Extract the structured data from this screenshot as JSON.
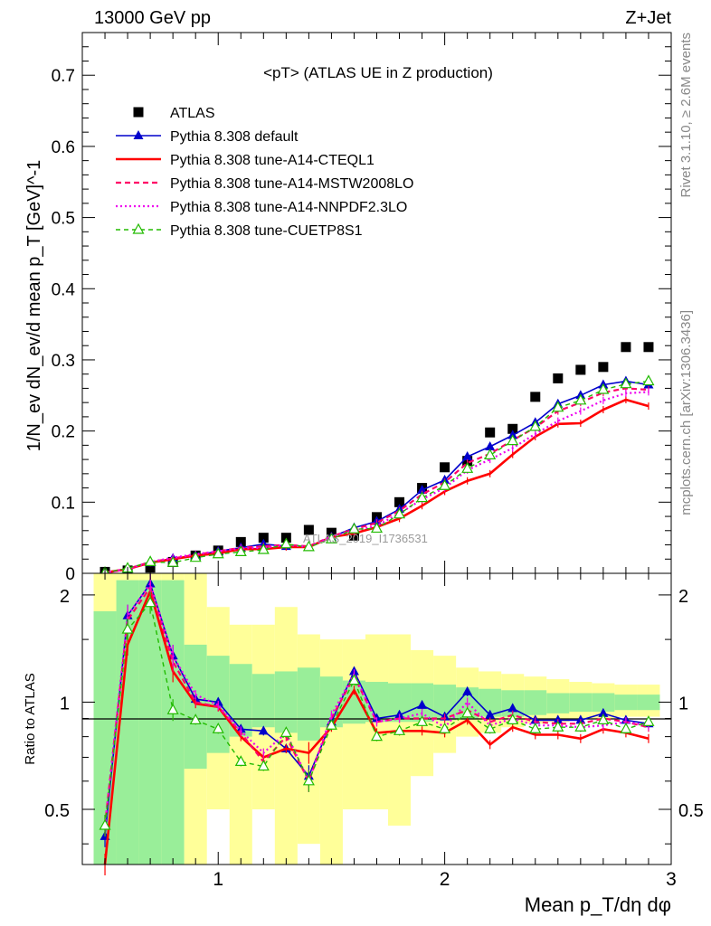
{
  "header": {
    "left": "13000 GeV pp",
    "right": "Z+Jet"
  },
  "side": {
    "rivet": "Rivet 3.1.10, ≥ 2.6M events",
    "mcplots": "mcplots.cern.ch [arXiv:1306.3436]"
  },
  "watermark": "ATLAS_2019_I1736531",
  "colors": {
    "atlas": "#000000",
    "default": "#0000cc",
    "cteql1": "#ff0000",
    "mstw": "#ff0066",
    "nnpdf": "#ee00ee",
    "cuetp8s1": "#22bb00",
    "band_inner": "#99ee99",
    "band_outer": "#ffff99"
  },
  "chart_data": [
    {
      "type": "line",
      "panel": "main",
      "title": "<pT> (ATLAS UE in Z production)",
      "ylabel": "1/N_ev dN_ev/d mean p_T [GeV]^-1",
      "xlim": [
        0.4,
        3.0
      ],
      "ylim": [
        0,
        0.76
      ],
      "yticks": [
        "0",
        "0.1",
        "0.2",
        "0.3",
        "0.4",
        "0.5",
        "0.6",
        "0.7"
      ],
      "x": [
        0.5,
        0.6,
        0.7,
        0.8,
        0.9,
        1.0,
        1.1,
        1.2,
        1.3,
        1.4,
        1.5,
        1.6,
        1.7,
        1.8,
        1.9,
        2.0,
        2.1,
        2.2,
        2.3,
        2.4,
        2.5,
        2.6,
        2.7,
        2.8,
        2.9
      ],
      "series": [
        {
          "name": "ATLAS",
          "key": "atlas",
          "values": [
            0.002,
            0.004,
            0.008,
            0.016,
            0.025,
            0.032,
            0.044,
            0.05,
            0.05,
            0.061,
            0.057,
            0.053,
            0.079,
            0.1,
            0.12,
            0.149,
            0.158,
            0.198,
            0.203,
            0.248,
            0.274,
            0.286,
            0.29,
            0.318,
            0.318
          ]
        },
        {
          "name": "Pythia 8.308 default",
          "key": "default",
          "values": [
            0.001,
            0.006,
            0.015,
            0.021,
            0.025,
            0.031,
            0.036,
            0.041,
            0.038,
            0.037,
            0.051,
            0.064,
            0.073,
            0.09,
            0.117,
            0.131,
            0.164,
            0.178,
            0.194,
            0.212,
            0.238,
            0.25,
            0.265,
            0.27,
            0.265
          ]
        },
        {
          "name": "Pythia 8.308 tune-A14-CTEQL1",
          "key": "cteql1",
          "values": [
            0.001,
            0.006,
            0.015,
            0.02,
            0.025,
            0.028,
            0.034,
            0.034,
            0.037,
            0.037,
            0.051,
            0.056,
            0.065,
            0.077,
            0.095,
            0.115,
            0.13,
            0.14,
            0.167,
            0.192,
            0.21,
            0.211,
            0.23,
            0.244,
            0.235
          ]
        },
        {
          "name": "Pythia 8.308 tune-A14-MSTW2008LO",
          "key": "mstw",
          "values": [
            0.001,
            0.006,
            0.016,
            0.021,
            0.026,
            0.031,
            0.036,
            0.038,
            0.04,
            0.038,
            0.052,
            0.062,
            0.071,
            0.088,
            0.111,
            0.128,
            0.155,
            0.168,
            0.187,
            0.205,
            0.228,
            0.24,
            0.254,
            0.26,
            0.258
          ]
        },
        {
          "name": "Pythia 8.308 tune-A14-NNPDF2.3LO",
          "key": "nnpdf",
          "values": [
            0.001,
            0.006,
            0.016,
            0.022,
            0.027,
            0.031,
            0.035,
            0.036,
            0.04,
            0.037,
            0.052,
            0.06,
            0.067,
            0.084,
            0.104,
            0.12,
            0.145,
            0.16,
            0.176,
            0.196,
            0.214,
            0.228,
            0.243,
            0.253,
            0.255
          ]
        },
        {
          "name": "Pythia 8.308 tune-CUETP8S1",
          "key": "cuetp8s1",
          "values": [
            0.001,
            0.007,
            0.016,
            0.015,
            0.022,
            0.027,
            0.03,
            0.033,
            0.041,
            0.037,
            0.048,
            0.062,
            0.063,
            0.083,
            0.106,
            0.123,
            0.147,
            0.166,
            0.186,
            0.206,
            0.233,
            0.243,
            0.258,
            0.266,
            0.27
          ]
        }
      ]
    },
    {
      "type": "line",
      "panel": "ratio",
      "xlabel": "Mean p_T/dη dφ",
      "ylabel": "Ratio to ATLAS",
      "xlim": [
        0.4,
        3.0
      ],
      "ylim": [
        0.35,
        2.3
      ],
      "log_y": true,
      "xticks": [
        "1",
        "2",
        "3"
      ],
      "yticks": [
        "0.5",
        "1",
        "2"
      ],
      "x": [
        0.5,
        0.6,
        0.7,
        0.8,
        0.9,
        1.0,
        1.1,
        1.2,
        1.3,
        1.4,
        1.5,
        1.6,
        1.7,
        1.8,
        1.9,
        2.0,
        2.1,
        2.2,
        2.3,
        2.4,
        2.5,
        2.6,
        2.7,
        2.8,
        2.9
      ],
      "band_inner": [
        [
          0.35,
          1.8
        ],
        [
          0.35,
          2.2
        ],
        [
          0.35,
          2.2
        ],
        [
          0.35,
          2.2
        ],
        [
          0.65,
          1.45
        ],
        [
          0.72,
          1.35
        ],
        [
          0.8,
          1.28
        ],
        [
          0.85,
          1.2
        ],
        [
          0.82,
          1.22
        ],
        [
          0.78,
          1.25
        ],
        [
          0.85,
          1.18
        ],
        [
          0.87,
          1.15
        ],
        [
          0.88,
          1.14
        ],
        [
          0.88,
          1.13
        ],
        [
          0.88,
          1.13
        ],
        [
          0.89,
          1.12
        ],
        [
          0.9,
          1.1
        ],
        [
          0.91,
          1.09
        ],
        [
          0.91,
          1.08
        ],
        [
          0.92,
          1.08
        ],
        [
          0.93,
          1.06
        ],
        [
          0.94,
          1.06
        ],
        [
          0.94,
          1.06
        ],
        [
          0.95,
          1.05
        ],
        [
          0.95,
          1.05
        ]
      ],
      "band_outer": [
        [
          0.35,
          2.3
        ],
        [
          0.35,
          2.3
        ],
        [
          0.35,
          2.3
        ],
        [
          0.35,
          2.3
        ],
        [
          0.35,
          2.3
        ],
        [
          0.5,
          1.85
        ],
        [
          0.35,
          1.65
        ],
        [
          0.5,
          1.65
        ],
        [
          0.35,
          1.85
        ],
        [
          0.4,
          1.55
        ],
        [
          0.35,
          1.5
        ],
        [
          0.5,
          1.5
        ],
        [
          0.5,
          1.55
        ],
        [
          0.45,
          1.55
        ],
        [
          0.62,
          1.4
        ],
        [
          0.72,
          1.35
        ],
        [
          0.8,
          1.25
        ],
        [
          0.82,
          1.22
        ],
        [
          0.85,
          1.2
        ],
        [
          0.87,
          1.18
        ],
        [
          0.88,
          1.16
        ],
        [
          0.9,
          1.14
        ],
        [
          0.9,
          1.13
        ],
        [
          0.91,
          1.12
        ],
        [
          0.91,
          1.12
        ]
      ],
      "series": [
        {
          "name": "Pythia 8.308 default",
          "key": "default",
          "values": [
            0.42,
            1.75,
            2.15,
            1.35,
            1.02,
            1.0,
            0.84,
            0.83,
            0.74,
            0.62,
            0.88,
            1.22,
            0.9,
            0.92,
            0.98,
            0.91,
            1.07,
            0.92,
            0.96,
            0.89,
            0.89,
            0.89,
            0.93,
            0.89,
            0.87
          ]
        },
        {
          "name": "Pythia 8.308 tune-A14-CTEQL1",
          "key": "cteql1",
          "values": [
            0.3,
            1.45,
            2.05,
            1.22,
            0.99,
            0.97,
            0.8,
            0.7,
            0.74,
            0.72,
            0.85,
            1.08,
            0.82,
            0.83,
            0.83,
            0.82,
            0.89,
            0.76,
            0.85,
            0.81,
            0.81,
            0.79,
            0.84,
            0.82,
            0.79
          ]
        },
        {
          "name": "Pythia 8.308 tune-A14-MSTW2008LO",
          "key": "mstw",
          "values": [
            0.45,
            1.7,
            2.1,
            1.3,
            1.0,
            0.97,
            0.82,
            0.68,
            0.8,
            0.6,
            0.9,
            1.18,
            0.88,
            0.9,
            0.9,
            0.9,
            0.95,
            0.88,
            0.92,
            0.88,
            0.87,
            0.87,
            0.9,
            0.88,
            0.85
          ]
        },
        {
          "name": "Pythia 8.308 tune-A14-NNPDF2.3LO",
          "key": "nnpdf",
          "values": [
            0.45,
            1.75,
            2.15,
            1.35,
            1.05,
            0.98,
            0.83,
            0.72,
            0.82,
            0.6,
            0.92,
            1.2,
            0.88,
            0.9,
            0.93,
            0.85,
            1.0,
            0.86,
            0.9,
            0.86,
            0.86,
            0.85,
            0.86,
            0.88,
            0.86
          ]
        },
        {
          "name": "Pythia 8.308 tune-CUETP8S1",
          "key": "cuetp8s1",
          "values": [
            0.45,
            1.6,
            1.9,
            0.95,
            0.89,
            0.84,
            0.68,
            0.66,
            0.82,
            0.6,
            0.86,
            1.15,
            0.8,
            0.83,
            0.88,
            0.84,
            0.93,
            0.84,
            0.89,
            0.84,
            0.85,
            0.85,
            0.89,
            0.84,
            0.88
          ]
        }
      ]
    }
  ]
}
